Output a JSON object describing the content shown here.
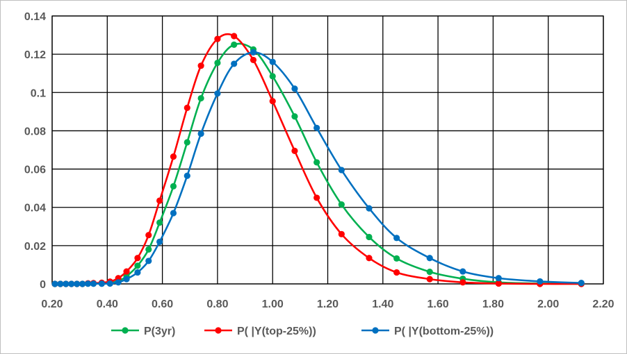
{
  "chart_data": {
    "type": "line",
    "title": "",
    "xlabel": "",
    "ylabel": "",
    "xlim": [
      0.2,
      2.2
    ],
    "ylim": [
      0,
      0.14
    ],
    "grid": true,
    "legend_position": "bottom",
    "x_tick_labels": [
      "0.20",
      "0.40",
      "0.60",
      "0.80",
      "1.00",
      "1.20",
      "1.40",
      "1.60",
      "1.80",
      "2.00",
      "2.20"
    ],
    "y_tick_labels": [
      "0",
      "0.02",
      "0.04",
      "0.06",
      "0.08",
      "0.1",
      "0.12",
      "0.14"
    ],
    "series": [
      {
        "name": "P(3yr)",
        "color": "#00B050",
        "points": [
          [
            0.21,
            0
          ],
          [
            0.23,
            0
          ],
          [
            0.25,
            0
          ],
          [
            0.27,
            0
          ],
          [
            0.29,
            0
          ],
          [
            0.31,
            0
          ],
          [
            0.33,
            0.0002
          ],
          [
            0.35,
            0.0002
          ],
          [
            0.38,
            0.0003
          ],
          [
            0.41,
            0.0006
          ],
          [
            0.44,
            0.0015
          ],
          [
            0.47,
            0.004
          ],
          [
            0.51,
            0.0095
          ],
          [
            0.55,
            0.018
          ],
          [
            0.59,
            0.032
          ],
          [
            0.64,
            0.051
          ],
          [
            0.69,
            0.074
          ],
          [
            0.74,
            0.097
          ],
          [
            0.8,
            0.1155
          ],
          [
            0.86,
            0.125
          ],
          [
            0.93,
            0.1225
          ],
          [
            1.0,
            0.1085
          ],
          [
            1.08,
            0.0875
          ],
          [
            1.16,
            0.0635
          ],
          [
            1.25,
            0.0415
          ],
          [
            1.35,
            0.0245
          ],
          [
            1.45,
            0.0133
          ],
          [
            1.57,
            0.0063
          ],
          [
            1.69,
            0.0027
          ],
          [
            1.82,
            0.0008
          ],
          [
            1.97,
            0.0002
          ],
          [
            2.12,
            0
          ]
        ]
      },
      {
        "name": "P( |Y(top-25%))",
        "color": "#FF0000",
        "points": [
          [
            0.21,
            0
          ],
          [
            0.23,
            0
          ],
          [
            0.25,
            0
          ],
          [
            0.27,
            0
          ],
          [
            0.29,
            0
          ],
          [
            0.31,
            0
          ],
          [
            0.33,
            0.0003
          ],
          [
            0.35,
            0.0004
          ],
          [
            0.38,
            0.0006
          ],
          [
            0.41,
            0.0012
          ],
          [
            0.44,
            0.003
          ],
          [
            0.47,
            0.0065
          ],
          [
            0.51,
            0.0135
          ],
          [
            0.55,
            0.0255
          ],
          [
            0.59,
            0.0435
          ],
          [
            0.64,
            0.0665
          ],
          [
            0.69,
            0.092
          ],
          [
            0.74,
            0.114
          ],
          [
            0.8,
            0.128
          ],
          [
            0.86,
            0.1295
          ],
          [
            0.93,
            0.117
          ],
          [
            1.0,
            0.0955
          ],
          [
            1.08,
            0.0695
          ],
          [
            1.16,
            0.045
          ],
          [
            1.25,
            0.026
          ],
          [
            1.35,
            0.0135
          ],
          [
            1.45,
            0.006
          ],
          [
            1.57,
            0.0025
          ],
          [
            1.69,
            0.0008
          ],
          [
            1.82,
            0.0002
          ],
          [
            1.97,
            0
          ],
          [
            2.12,
            0
          ]
        ]
      },
      {
        "name": "P( |Y(bottom-25%))",
        "color": "#0070C0",
        "points": [
          [
            0.21,
            0
          ],
          [
            0.23,
            0
          ],
          [
            0.25,
            0
          ],
          [
            0.27,
            0
          ],
          [
            0.29,
            0
          ],
          [
            0.31,
            0
          ],
          [
            0.33,
            0.0001
          ],
          [
            0.35,
            0.0001
          ],
          [
            0.38,
            0.0001
          ],
          [
            0.41,
            0.0002
          ],
          [
            0.44,
            0.0008
          ],
          [
            0.47,
            0.0025
          ],
          [
            0.51,
            0.006
          ],
          [
            0.55,
            0.012
          ],
          [
            0.59,
            0.022
          ],
          [
            0.64,
            0.037
          ],
          [
            0.69,
            0.0565
          ],
          [
            0.74,
            0.0785
          ],
          [
            0.8,
            0.0995
          ],
          [
            0.86,
            0.115
          ],
          [
            0.93,
            0.121
          ],
          [
            1.0,
            0.116
          ],
          [
            1.08,
            0.102
          ],
          [
            1.16,
            0.0815
          ],
          [
            1.25,
            0.0595
          ],
          [
            1.35,
            0.0395
          ],
          [
            1.45,
            0.024
          ],
          [
            1.57,
            0.0135
          ],
          [
            1.69,
            0.0065
          ],
          [
            1.82,
            0.003
          ],
          [
            1.97,
            0.0013
          ],
          [
            2.12,
            0.0005
          ]
        ]
      }
    ]
  }
}
